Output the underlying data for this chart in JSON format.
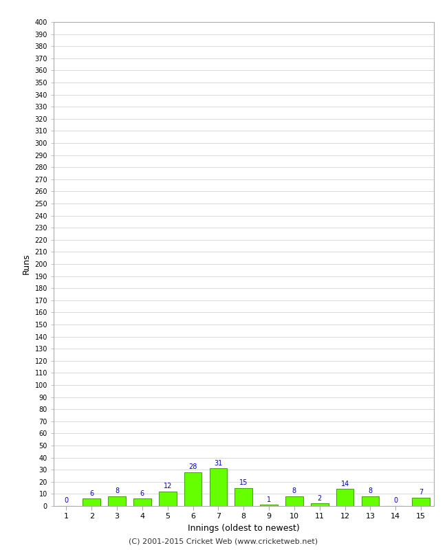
{
  "xlabel": "Innings (oldest to newest)",
  "ylabel": "Runs",
  "innings": [
    1,
    2,
    3,
    4,
    5,
    6,
    7,
    8,
    9,
    10,
    11,
    12,
    13,
    14,
    15
  ],
  "values": [
    0,
    6,
    8,
    6,
    12,
    28,
    31,
    15,
    1,
    8,
    2,
    14,
    8,
    0,
    7
  ],
  "bar_color": "#66ff00",
  "bar_edge_color": "#44aa00",
  "value_label_color": "#0000cc",
  "ylim": [
    0,
    400
  ],
  "background_color": "#ffffff",
  "grid_color": "#cccccc",
  "footer": "(C) 2001-2015 Cricket Web (www.cricketweb.net)"
}
